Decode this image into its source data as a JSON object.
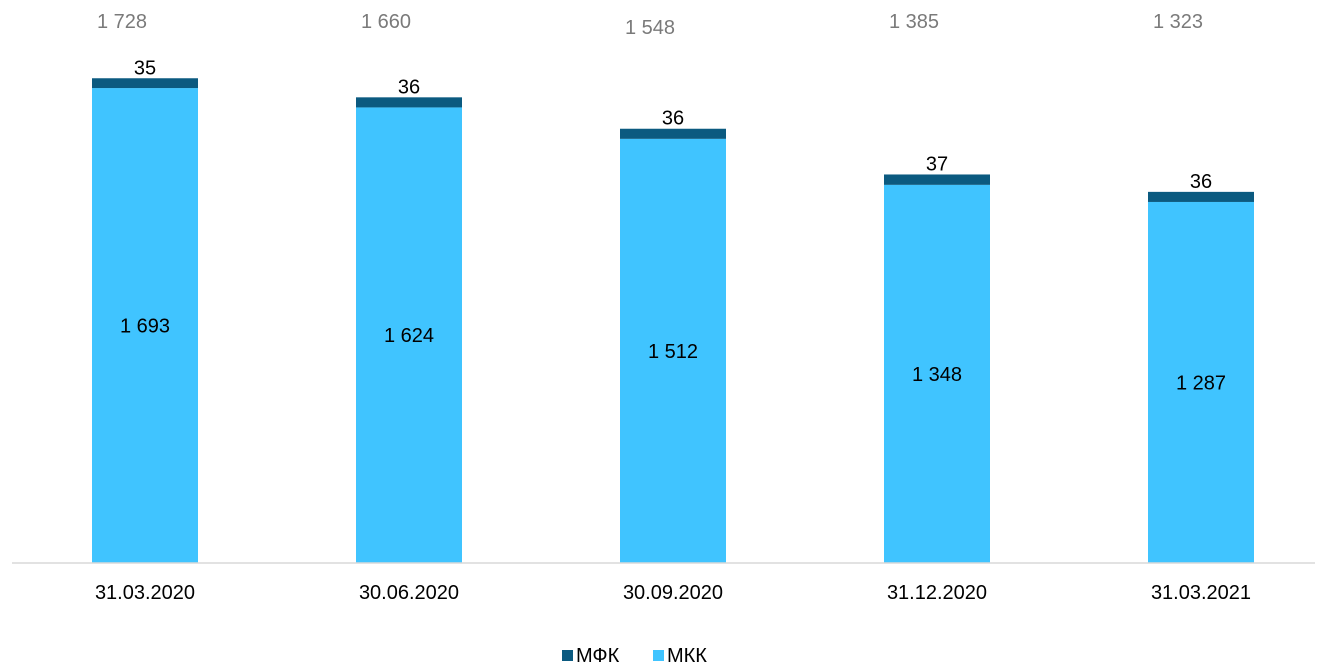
{
  "chart_data": {
    "type": "bar",
    "stacked": true,
    "categories": [
      "31.03.2020",
      "30.06.2020",
      "30.09.2020",
      "31.12.2020",
      "31.03.2021"
    ],
    "series": [
      {
        "name": "МКК",
        "values": [
          1693,
          1624,
          1512,
          1348,
          1287
        ],
        "labels": [
          "1 693",
          "1 624",
          "1 512",
          "1 348",
          "1 287"
        ],
        "color": "#40C4FF"
      },
      {
        "name": "МФК",
        "values": [
          35,
          36,
          36,
          37,
          36
        ],
        "labels": [
          "35",
          "36",
          "36",
          "37",
          "36"
        ],
        "color": "#0B5A80"
      }
    ],
    "totals": [
      1728,
      1660,
      1548,
      1385,
      1323
    ],
    "total_labels": [
      "1 728",
      "1 660",
      "1 548",
      "1 385",
      "1 323"
    ],
    "ylim": [
      0,
      1900
    ],
    "grid": false,
    "legend_position": "bottom",
    "legend_order": [
      "МФК",
      "МКК"
    ]
  }
}
